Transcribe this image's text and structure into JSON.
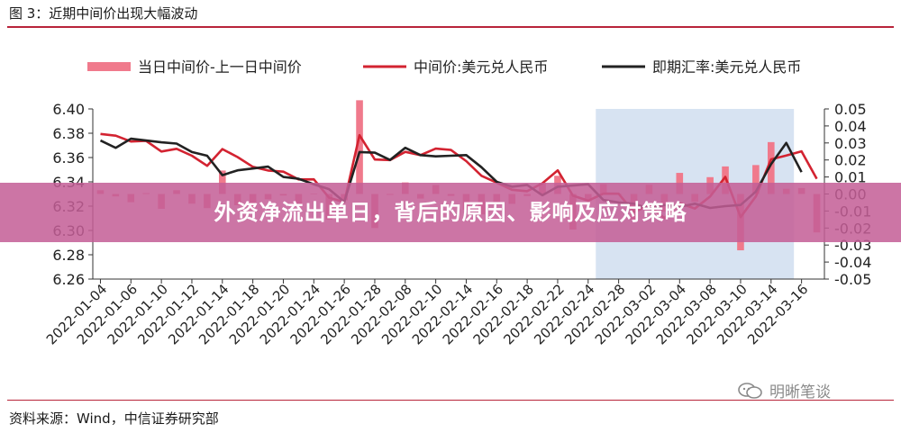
{
  "figure": {
    "title": "图 3：近期中间价出现大幅波动",
    "source": "资料来源：Wind，中信证券研究部",
    "watermark": "明晰笔谈"
  },
  "banner": {
    "text": "外资净流出单日，背后的原因、影响及应对策略"
  },
  "colors": {
    "accent": "#b8243a",
    "bar": "#f07a8c",
    "mid_line": "#d32331",
    "spot_line": "#222222",
    "highlight": "#d7e3f2",
    "banner": "#c45e96"
  },
  "chart_data": {
    "type": "bar+line",
    "legend": [
      "当日中间价-上一日中间价",
      "中间价:美元兑人民币",
      "即期汇率:美元兑人民币"
    ],
    "legend_position": "top",
    "left_axis": {
      "min": 6.26,
      "max": 6.4,
      "ticks": [
        "6.40",
        "6.38",
        "6.36",
        "6.34",
        "6.32",
        "6.30",
        "6.28",
        "6.26"
      ]
    },
    "right_axis": {
      "min": -0.05,
      "max": 0.05,
      "ticks": [
        "0.05",
        "0.04",
        "0.03",
        "0.02",
        "0.01",
        "0.00",
        "-0.01",
        "-0.02",
        "-0.03",
        "-0.04",
        "-0.05"
      ]
    },
    "x_tick_labels": [
      "2022-01-04",
      "2022-01-06",
      "2022-01-10",
      "2022-01-12",
      "2022-01-14",
      "2022-01-18",
      "2022-01-20",
      "2022-01-24",
      "2022-01-26",
      "2022-01-28",
      "2022-02-08",
      "2022-02-10",
      "2022-02-14",
      "2022-02-16",
      "2022-02-18",
      "2022-02-22",
      "2022-02-24",
      "2022-02-28",
      "2022-03-02",
      "2022-03-04",
      "2022-03-08",
      "2022-03-10",
      "2022-03-14",
      "2022-03-16"
    ],
    "n_points": 48,
    "highlight_range": [
      33,
      46
    ],
    "series": [
      {
        "name": "中间价:美元兑人民币",
        "axis": "left",
        "values": [
          6.3794,
          6.378,
          6.3732,
          6.3737,
          6.365,
          6.3672,
          6.3615,
          6.3532,
          6.367,
          6.3604,
          6.3524,
          6.3493,
          6.3484,
          6.342,
          6.3421,
          6.327,
          6.3233,
          6.3784,
          6.3584,
          6.3579,
          6.3647,
          6.362,
          6.3673,
          6.3662,
          6.357,
          6.345,
          6.3393,
          6.3335,
          6.3323,
          6.3388,
          6.3495,
          6.3286,
          6.3245,
          6.3303,
          6.3302,
          6.3151,
          6.3205,
          6.3101,
          6.3225,
          6.318,
          6.3279,
          6.3441,
          6.311,
          6.328,
          6.3585,
          6.3616,
          6.3651,
          6.3425
        ]
      },
      {
        "name": "即期汇率:美元兑人民币",
        "axis": "left",
        "values": [
          6.374,
          6.368,
          6.3755,
          6.374,
          6.3725,
          6.3715,
          6.3645,
          6.3615,
          6.3455,
          6.3495,
          6.351,
          6.3525,
          6.344,
          6.3425,
          6.338,
          6.334,
          6.3235,
          6.3645,
          6.364,
          6.358,
          6.368,
          6.362,
          6.361,
          6.3615,
          6.362,
          6.352,
          6.34,
          6.336,
          6.3375,
          6.329,
          6.336,
          6.337,
          6.338,
          6.325,
          6.323,
          6.322,
          6.318,
          6.321,
          6.3195,
          6.322,
          6.3185,
          6.32,
          6.321,
          6.332,
          6.3545,
          6.372,
          6.348,
          null
        ]
      },
      {
        "name": "当日中间价-上一日中间价",
        "axis": "right",
        "values": [
          0.0022,
          -0.0014,
          -0.0048,
          0.0005,
          -0.0087,
          0.0022,
          -0.0057,
          -0.0083,
          0.0138,
          -0.0066,
          -0.008,
          -0.0031,
          -0.0009,
          -0.0064,
          0.0001,
          -0.0151,
          -0.0037,
          0.0551,
          -0.02,
          -0.0005,
          0.0068,
          -0.0027,
          0.0053,
          -0.0011,
          -0.0092,
          -0.012,
          -0.0057,
          -0.0058,
          -0.0012,
          0.0065,
          0.0107,
          -0.0209,
          -0.0041,
          0.0058,
          -0.0001,
          -0.0151,
          0.0054,
          -0.0104,
          0.0124,
          -0.0045,
          0.0099,
          0.0162,
          -0.0331,
          0.017,
          0.0305,
          0.0031,
          0.0035,
          -0.0226
        ]
      }
    ]
  }
}
